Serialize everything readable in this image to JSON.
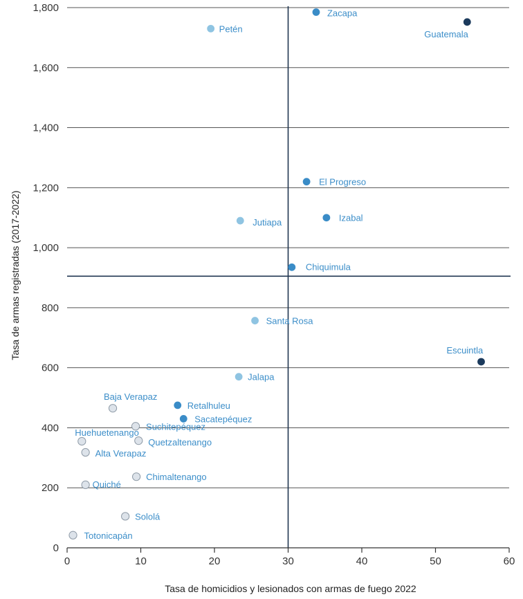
{
  "chart_data": {
    "type": "scatter",
    "xlabel": "Tasa de homicidios y lesionados con armas de fuego 2022",
    "ylabel": "Tasa de armas registradas (2017-2022)",
    "xlim": [
      0,
      60
    ],
    "ylim": [
      0,
      1800
    ],
    "x_ticks": [
      "0",
      "10",
      "20",
      "30",
      "40",
      "50",
      "60"
    ],
    "y_ticks": [
      "0",
      "200",
      "400",
      "600",
      "800",
      "1,000",
      "1,200",
      "1,400",
      "1,600",
      "1,800"
    ],
    "grid": "horizontal",
    "reference_lines": {
      "x": 30,
      "y": 905
    },
    "colors": {
      "dark": "#1b3a5c",
      "medium": "#3a8cc7",
      "light": "#8fc4e2",
      "grey": "#dde3ea",
      "label": "#3c8ec9"
    },
    "points": [
      {
        "name": "Zacapa",
        "x": 33.8,
        "y": 1785,
        "tone": "medium"
      },
      {
        "name": "Petén",
        "x": 19.5,
        "y": 1730,
        "tone": "light"
      },
      {
        "name": "Guatemala",
        "x": 54.3,
        "y": 1752,
        "tone": "dark"
      },
      {
        "name": "El Progreso",
        "x": 32.5,
        "y": 1220,
        "tone": "medium"
      },
      {
        "name": "Izabal",
        "x": 35.2,
        "y": 1100,
        "tone": "medium"
      },
      {
        "name": "Jutiapa",
        "x": 23.5,
        "y": 1090,
        "tone": "light"
      },
      {
        "name": "Chiquimula",
        "x": 30.5,
        "y": 935,
        "tone": "medium"
      },
      {
        "name": "Santa Rosa",
        "x": 25.5,
        "y": 757,
        "tone": "light"
      },
      {
        "name": "Escuintla",
        "x": 56.2,
        "y": 620,
        "tone": "dark"
      },
      {
        "name": "Jalapa",
        "x": 23.3,
        "y": 570,
        "tone": "light"
      },
      {
        "name": "Baja Verapaz",
        "x": 6.2,
        "y": 465,
        "tone": "grey"
      },
      {
        "name": "Retalhuleu",
        "x": 15.0,
        "y": 475,
        "tone": "medium"
      },
      {
        "name": "Sacatepéquez",
        "x": 15.8,
        "y": 430,
        "tone": "medium"
      },
      {
        "name": "Suchitepéquez",
        "x": 9.3,
        "y": 405,
        "tone": "grey"
      },
      {
        "name": "Huehuetenango",
        "x": 2.0,
        "y": 355,
        "tone": "grey"
      },
      {
        "name": "Quetzaltenango",
        "x": 9.7,
        "y": 357,
        "tone": "grey"
      },
      {
        "name": "Alta Verapaz",
        "x": 2.5,
        "y": 318,
        "tone": "grey"
      },
      {
        "name": "Chimaltenango",
        "x": 9.4,
        "y": 237,
        "tone": "grey"
      },
      {
        "name": "Quiché",
        "x": 2.5,
        "y": 210,
        "tone": "grey"
      },
      {
        "name": "Sololá",
        "x": 7.9,
        "y": 105,
        "tone": "grey"
      },
      {
        "name": "Totonicapán",
        "x": 0.8,
        "y": 42,
        "tone": "grey"
      }
    ]
  }
}
